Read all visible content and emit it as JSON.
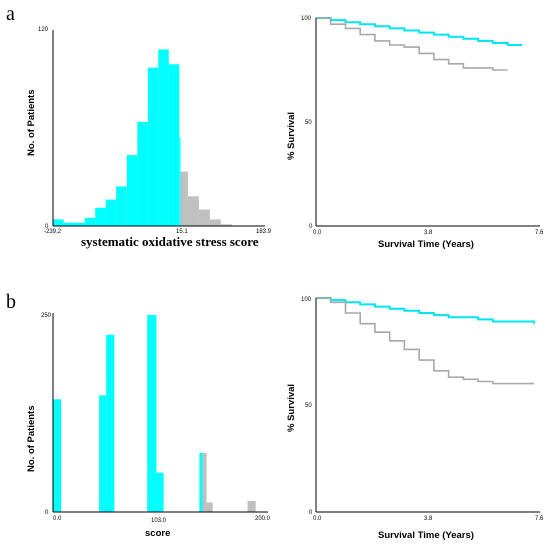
{
  "panels": [
    {
      "letter": "a"
    },
    {
      "letter": "b"
    }
  ],
  "colors": {
    "cyan": "#00ffff",
    "gray": "#c0c0c0",
    "axis": "#000000",
    "cyan_line": "#00e5f0",
    "gray_line": "#a8a8a8"
  },
  "chart_data": [
    {
      "type": "bar",
      "panel": "a",
      "xlabel": "systematic oxidative stress score",
      "ylabel": "No. of Patients",
      "ylim": [
        0,
        120
      ],
      "xlim": [
        -239.2,
        183.9
      ],
      "xticks": [
        "-239.2",
        "15.1",
        "183.9"
      ],
      "yticks": [
        "0",
        "120"
      ],
      "series": [
        {
          "color": "cyan",
          "bins": [
            {
              "x0": -239.2,
              "x1": -218,
              "v": 4
            },
            {
              "x0": -218,
              "x1": -197,
              "v": 2
            },
            {
              "x0": -197,
              "x1": -176,
              "v": 2
            },
            {
              "x0": -176,
              "x1": -155,
              "v": 5
            },
            {
              "x0": -155,
              "x1": -134,
              "v": 11
            },
            {
              "x0": -134,
              "x1": -113,
              "v": 16
            },
            {
              "x0": -113,
              "x1": -92,
              "v": 24
            },
            {
              "x0": -92,
              "x1": -71,
              "v": 43
            },
            {
              "x0": -71,
              "x1": -50,
              "v": 63
            },
            {
              "x0": -50,
              "x1": -29,
              "v": 96
            },
            {
              "x0": -29,
              "x1": -8,
              "v": 107
            },
            {
              "x0": -8,
              "x1": 13,
              "v": 98
            },
            {
              "x0": 13,
              "x1": 15.1,
              "v": 54
            }
          ]
        },
        {
          "color": "gray",
          "bins": [
            {
              "x0": 15.1,
              "x1": 30,
              "v": 33
            },
            {
              "x0": 30,
              "x1": 52,
              "v": 18
            },
            {
              "x0": 52,
              "x1": 74,
              "v": 10
            },
            {
              "x0": 74,
              "x1": 96,
              "v": 4
            },
            {
              "x0": 96,
              "x1": 118,
              "v": 1
            }
          ]
        }
      ]
    },
    {
      "type": "line",
      "panel": "a",
      "xlabel": "Survival Time (Years)",
      "ylabel": "% Survival",
      "xlim": [
        0,
        7.6
      ],
      "ylim": [
        0,
        100
      ],
      "xticks": [
        "0.0",
        "3.8",
        "7.6"
      ],
      "yticks": [
        "0",
        "50",
        "100"
      ],
      "series": [
        {
          "color": "cyan",
          "x": [
            0,
            0.5,
            1,
            1.5,
            2,
            2.5,
            3,
            3.5,
            4,
            4.5,
            5,
            5.5,
            6,
            6.5,
            7
          ],
          "y": [
            100,
            99,
            98,
            97,
            96,
            95,
            94,
            93,
            92,
            91,
            90,
            89,
            88,
            87,
            87
          ]
        },
        {
          "color": "gray",
          "x": [
            0,
            0.5,
            1,
            1.5,
            2,
            2.5,
            3,
            3.5,
            4,
            4.5,
            5,
            5.5,
            6,
            6.5
          ],
          "y": [
            100,
            97,
            95,
            92,
            89,
            87,
            86,
            83,
            80,
            78,
            76,
            76,
            75,
            75
          ]
        }
      ]
    },
    {
      "type": "bar",
      "panel": "b",
      "xlabel": "score",
      "ylabel": "No. of Patients",
      "ylim": [
        0,
        250
      ],
      "xlim": [
        0,
        210
      ],
      "xticks": [
        "0.0",
        "103.0",
        "200.0"
      ],
      "yticks": [
        "0",
        "250"
      ],
      "series": [
        {
          "color": "cyan",
          "bins": [
            {
              "x0": 0,
              "x1": 8,
              "v": 143
            },
            {
              "x0": 45,
              "x1": 52,
              "v": 148
            },
            {
              "x0": 52,
              "x1": 60,
              "v": 225
            },
            {
              "x0": 92,
              "x1": 101,
              "v": 250
            },
            {
              "x0": 101,
              "x1": 108,
              "v": 50
            },
            {
              "x0": 143,
              "x1": 146,
              "v": 75
            }
          ]
        },
        {
          "color": "gray",
          "bins": [
            {
              "x0": 146,
              "x1": 150,
              "v": 75
            },
            {
              "x0": 150,
              "x1": 156,
              "v": 12
            },
            {
              "x0": 190,
              "x1": 198,
              "v": 14
            }
          ]
        }
      ]
    },
    {
      "type": "line",
      "panel": "b",
      "xlabel": "Survival Time (Years)",
      "ylabel": "% Survival",
      "xlim": [
        0,
        7.6
      ],
      "ylim": [
        0,
        100
      ],
      "xticks": [
        "0.0",
        "3.8",
        "7.6"
      ],
      "yticks": [
        "0",
        "50",
        "100"
      ],
      "series": [
        {
          "color": "cyan",
          "x": [
            0,
            0.5,
            1,
            1.5,
            2,
            2.5,
            3,
            3.5,
            4,
            4.5,
            5,
            5.5,
            6,
            6.5,
            7.4
          ],
          "y": [
            100,
            99,
            98,
            97,
            96,
            95,
            94,
            93,
            92,
            91,
            91,
            90,
            89,
            89,
            88
          ]
        },
        {
          "color": "gray",
          "x": [
            0,
            0.5,
            1,
            1.5,
            2,
            2.5,
            3,
            3.5,
            4,
            4.5,
            5,
            5.5,
            6,
            6.5,
            7.4
          ],
          "y": [
            100,
            98,
            93,
            88,
            84,
            80,
            76,
            71,
            66,
            63,
            62,
            61,
            60,
            60,
            60
          ]
        }
      ]
    }
  ]
}
